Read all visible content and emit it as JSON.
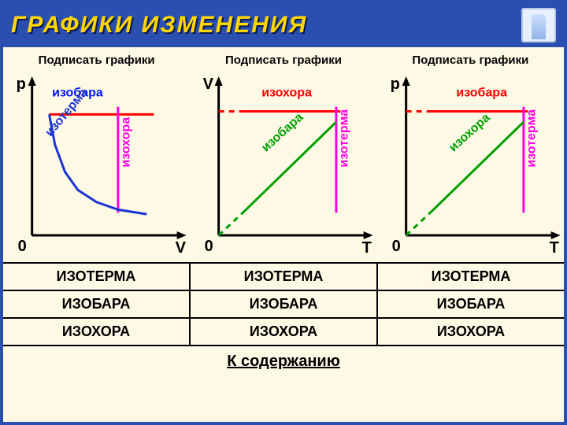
{
  "title": {
    "text": "ГРАФИКИ ИЗМЕНЕНИЯ",
    "fontsize": 30,
    "color": "#ffd600"
  },
  "subtitles": [
    "Подписать графики",
    "Подписать графики",
    "Подписать графики"
  ],
  "palette": {
    "axis": "#000000",
    "bg": "#fdf9e5",
    "navy": "#2b4fb0",
    "yellow": "#ffd600",
    "isobara": "#ff0000",
    "isochora": "#ff00e6",
    "isoterma": "#00a000",
    "isoterma_blue": "#1a34d6"
  },
  "footer": {
    "label": "К содержанию",
    "href": "#"
  },
  "buttons": [
    [
      "ИЗОТЕРМА",
      "ИЗОТЕРМА",
      "ИЗОТЕРМА"
    ],
    [
      "ИЗОБАРА",
      "ИЗОБАРА",
      "ИЗОБАРА"
    ],
    [
      "ИЗОХОРА",
      "ИЗОХОРА",
      "ИЗОХОРА"
    ]
  ],
  "button_style": {
    "fontsize": 18,
    "fontweight": 900,
    "color": "#000"
  },
  "charts": [
    {
      "type": "line",
      "y_label": "p",
      "x_label": "V",
      "origin_label": "0",
      "xlim": [
        0,
        10
      ],
      "ylim": [
        0,
        10
      ],
      "axis": {
        "color": "#000",
        "width": 3,
        "arrow": true
      },
      "curves": [
        {
          "name": "изобара",
          "label": "изобара",
          "color": "#ff0000",
          "width": 3,
          "lbl_color": "#0018ff",
          "points": [
            [
              1.2,
              8.0
            ],
            [
              8.5,
              8.0
            ]
          ],
          "label_pos": [
            1.4,
            9.2
          ],
          "label_rot": 0
        },
        {
          "name": "изохора",
          "label": "изохора",
          "color": "#ff00e6",
          "width": 3,
          "lbl_color": "#ff00e6",
          "points": [
            [
              6.0,
              1.5
            ],
            [
              6.0,
              8.5
            ]
          ],
          "label_pos": [
            6.8,
            4.5
          ],
          "label_rot": -90
        },
        {
          "name": "изотерма",
          "label": "изотерма",
          "color": "#1a34d6",
          "width": 3,
          "lbl_color": "#1a34d6",
          "points": [
            [
              1.2,
              8.0
            ],
            [
              1.6,
              6.0
            ],
            [
              2.3,
              4.2
            ],
            [
              3.2,
              3.0
            ],
            [
              4.5,
              2.2
            ],
            [
              6.0,
              1.7
            ],
            [
              8.0,
              1.4
            ]
          ],
          "label_pos": [
            1.3,
            6.5
          ],
          "label_rot": -50
        }
      ]
    },
    {
      "type": "line",
      "y_label": "V",
      "x_label": "T",
      "origin_label": "0",
      "xlim": [
        0,
        10
      ],
      "ylim": [
        0,
        10
      ],
      "axis": {
        "color": "#000",
        "width": 3,
        "arrow": true
      },
      "curves": [
        {
          "name": "изохора",
          "label": "изохора",
          "color": "#ff0000",
          "width": 3,
          "lbl_color": "#ff0000",
          "points": [
            [
              1.8,
              8.2
            ],
            [
              8.5,
              8.2
            ]
          ],
          "dash_ext": [
            [
              0,
              8.2
            ],
            [
              1.8,
              8.2
            ]
          ],
          "label_pos": [
            3.0,
            9.2
          ],
          "label_rot": 0
        },
        {
          "name": "изотерма",
          "label": "изотерма",
          "color": "#ff00e6",
          "width": 3,
          "lbl_color": "#ff00e6",
          "points": [
            [
              8.2,
              1.5
            ],
            [
              8.2,
              8.5
            ]
          ],
          "label_pos": [
            9.0,
            4.5
          ],
          "label_rot": -90
        },
        {
          "name": "изобара",
          "label": "изобара",
          "color": "#00a000",
          "width": 3,
          "lbl_color": "#00a000",
          "points": [
            [
              1.8,
              1.6
            ],
            [
              8.2,
              7.5
            ]
          ],
          "dash_ext": [
            [
              0,
              0
            ],
            [
              1.8,
              1.6
            ]
          ],
          "label_pos": [
            3.3,
            5.5
          ],
          "label_rot": -42
        }
      ]
    },
    {
      "type": "line",
      "y_label": "p",
      "x_label": "T",
      "origin_label": "0",
      "xlim": [
        0,
        10
      ],
      "ylim": [
        0,
        10
      ],
      "axis": {
        "color": "#000",
        "width": 3,
        "arrow": true
      },
      "curves": [
        {
          "name": "изобара",
          "label": "изобара",
          "color": "#ff0000",
          "width": 3,
          "lbl_color": "#ff0000",
          "points": [
            [
              1.8,
              8.2
            ],
            [
              8.5,
              8.2
            ]
          ],
          "dash_ext": [
            [
              0,
              8.2
            ],
            [
              1.8,
              8.2
            ]
          ],
          "label_pos": [
            3.5,
            9.2
          ],
          "label_rot": 0
        },
        {
          "name": "изотерма",
          "label": "изотерма",
          "color": "#ff00e6",
          "width": 3,
          "lbl_color": "#ff00e6",
          "points": [
            [
              8.2,
              1.5
            ],
            [
              8.2,
              8.5
            ]
          ],
          "label_pos": [
            9.0,
            4.5
          ],
          "label_rot": -90
        },
        {
          "name": "изохора",
          "label": "изохора",
          "color": "#00a000",
          "width": 3,
          "lbl_color": "#00a000",
          "points": [
            [
              1.8,
              1.6
            ],
            [
              8.2,
              7.5
            ]
          ],
          "dash_ext": [
            [
              0,
              0
            ],
            [
              1.8,
              1.6
            ]
          ],
          "label_pos": [
            3.3,
            5.5
          ],
          "label_rot": -42
        }
      ]
    }
  ]
}
